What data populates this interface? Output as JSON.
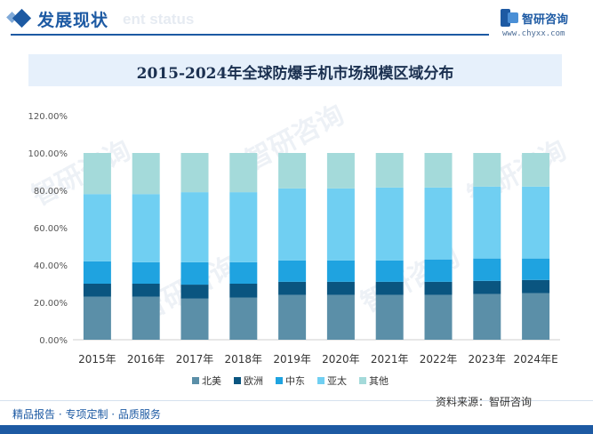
{
  "header": {
    "title": "发展现状",
    "subtitle": "ent status"
  },
  "brand": {
    "name": "智研咨询",
    "url": "www.chyxx.com"
  },
  "footer": {
    "left_text": "精品报告 · 专项定制 · 品质服务",
    "source_text": "资料来源：智研咨询"
  },
  "watermark": {
    "text": "智研咨询"
  },
  "colors": {
    "primary": "#1d5aa3",
    "north_america": "#5b8fa8",
    "europe": "#0a5580",
    "middle_east": "#1fa3e0",
    "asia_pacific": "#70cff2",
    "other": "#a4dada"
  },
  "chart_data": {
    "type": "bar",
    "stacked": true,
    "title": "2015-2024年全球防爆手机市场规模区域分布",
    "categories": [
      "2015年",
      "2016年",
      "2017年",
      "2018年",
      "2019年",
      "2020年",
      "2021年",
      "2022年",
      "2023年",
      "2024年E"
    ],
    "y_ticks": [
      "0.00%",
      "20.00%",
      "40.00%",
      "60.00%",
      "80.00%",
      "100.00%",
      "120.00%"
    ],
    "ylim": [
      0,
      120
    ],
    "grid": false,
    "legend_position": "bottom",
    "series": [
      {
        "name": "北美",
        "color": "#5b8fa8",
        "values": [
          23.0,
          23.0,
          22.0,
          22.5,
          24.0,
          24.0,
          24.0,
          24.0,
          24.5,
          25.0
        ]
      },
      {
        "name": "欧洲",
        "color": "#0a5580",
        "values": [
          7.0,
          7.0,
          7.5,
          7.5,
          7.0,
          7.0,
          7.0,
          7.0,
          7.0,
          7.0
        ]
      },
      {
        "name": "中东",
        "color": "#1fa3e0",
        "values": [
          12.0,
          11.5,
          12.0,
          11.5,
          11.5,
          11.5,
          11.5,
          12.0,
          12.0,
          11.5
        ]
      },
      {
        "name": "亚太",
        "color": "#70cff2",
        "values": [
          36.0,
          36.5,
          37.5,
          37.5,
          38.5,
          38.5,
          39.0,
          38.5,
          38.5,
          38.5
        ]
      },
      {
        "name": "其他",
        "color": "#a4dada",
        "values": [
          22.0,
          22.0,
          21.0,
          21.0,
          19.0,
          19.0,
          18.5,
          18.5,
          18.0,
          18.0
        ]
      }
    ]
  }
}
